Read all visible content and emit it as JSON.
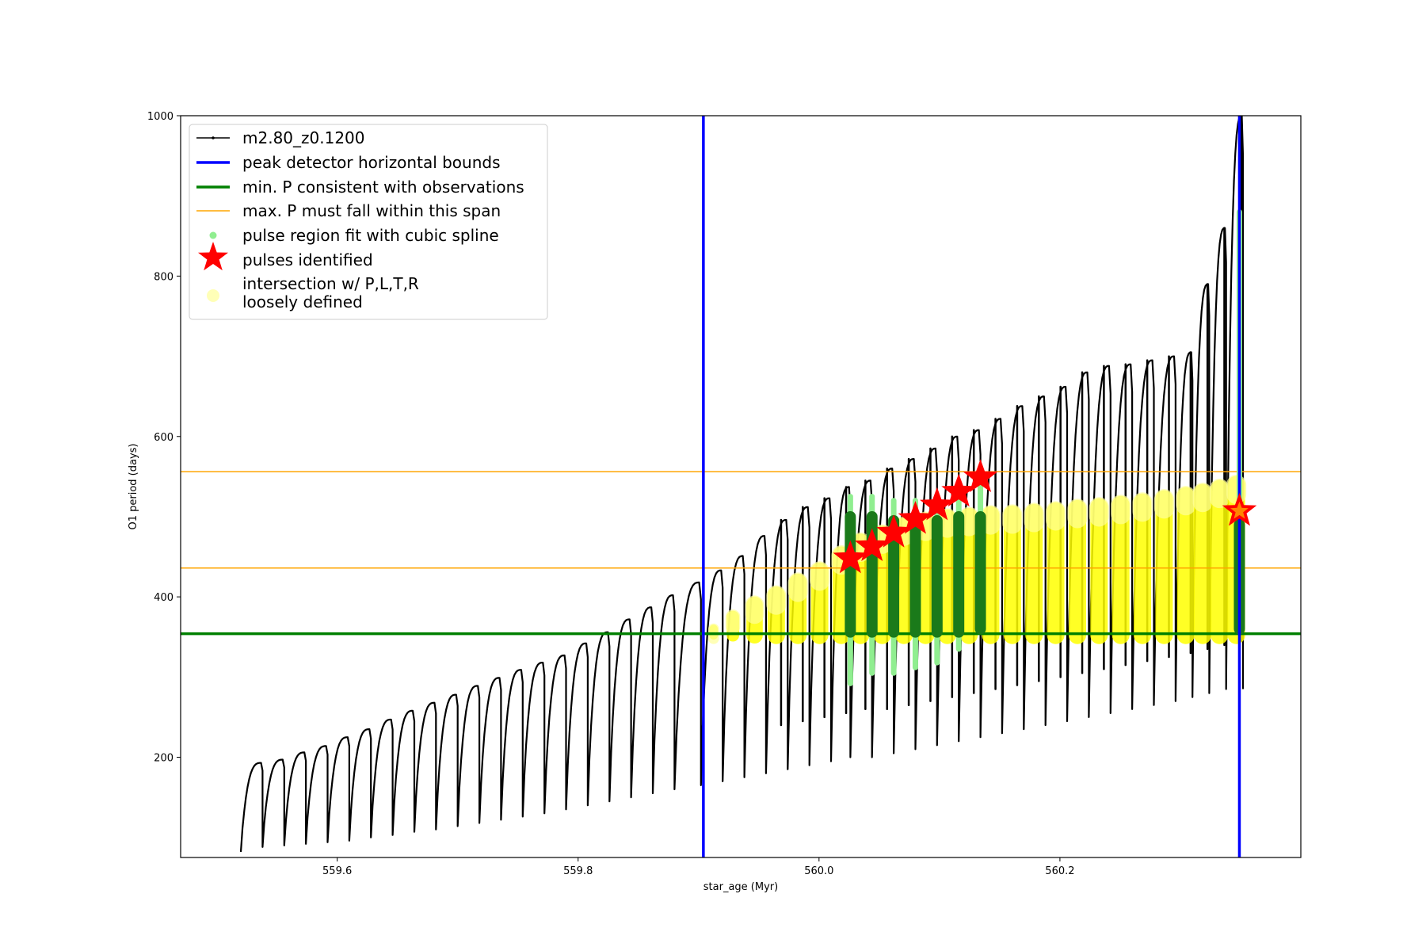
{
  "chart_data": {
    "type": "scatter",
    "title": "",
    "xlabel": "star_age (Myr)",
    "ylabel": "O1 period (days)",
    "xlim": [
      559.47,
      560.4
    ],
    "ylim": [
      75,
      1000
    ],
    "x_ticks": [
      559.6,
      559.8,
      560.0,
      560.2
    ],
    "x_tick_labels": [
      "559.6",
      "559.8",
      "560.0",
      "560.2"
    ],
    "y_ticks": [
      200,
      400,
      600,
      800,
      1000
    ],
    "y_tick_labels": [
      "200",
      "400",
      "600",
      "800",
      "1000"
    ],
    "grid": false,
    "legend_position": "upper-left",
    "legend": [
      {
        "label": "m2.80_z0.1200",
        "marker": "line-dot",
        "color": "#000000"
      },
      {
        "label": "peak detector horizontal bounds",
        "marker": "thick-line",
        "color": "#0000ff"
      },
      {
        "label": "min. P consistent with observations",
        "marker": "thick-line",
        "color": "#008000"
      },
      {
        "label": "max. P must fall within this span",
        "marker": "thin-line",
        "color": "#ffa500"
      },
      {
        "label": "pulse region fit with cubic spline",
        "marker": "dot",
        "color": "#90ee90"
      },
      {
        "label": "pulses identified",
        "marker": "star",
        "color": "#ff0000"
      },
      {
        "label": "intersection w/ P,L,T,R",
        "label2": "loosely defined",
        "marker": "big-dot",
        "color": "#ffff99"
      }
    ],
    "vertical_lines": [
      {
        "x": 559.904,
        "color": "#0000ff",
        "series": "peak detector horizontal bounds"
      },
      {
        "x": 560.349,
        "color": "#0000ff",
        "series": "peak detector horizontal bounds"
      }
    ],
    "horizontal_lines": [
      {
        "y": 354,
        "color": "#008000",
        "series": "min. P consistent with observations"
      },
      {
        "y": 436,
        "color": "#ffa500",
        "series": "max. P must fall within this span"
      },
      {
        "y": 556,
        "color": "#ffa500",
        "series": "max. P must fall within this span"
      }
    ],
    "track": {
      "name": "m2.80_z0.1200",
      "color": "#000000",
      "pulse_ages": [
        559.52,
        559.538,
        559.556,
        559.574,
        559.592,
        559.61,
        559.628,
        559.646,
        559.664,
        559.682,
        559.7,
        559.718,
        559.736,
        559.754,
        559.772,
        559.79,
        559.808,
        559.826,
        559.844,
        559.862,
        559.88,
        559.902,
        559.92,
        559.938,
        559.956,
        559.974,
        559.992,
        560.01,
        560.026,
        560.044,
        560.062,
        560.08,
        560.098,
        560.116,
        560.134,
        560.152,
        560.17,
        560.188,
        560.206,
        560.224,
        560.242,
        560.26,
        560.278,
        560.296,
        560.31,
        560.324,
        560.338
      ],
      "pulse_troughs": [
        82,
        88,
        90,
        92,
        94,
        96,
        100,
        103,
        107,
        110,
        114,
        118,
        122,
        126,
        130,
        135,
        140,
        145,
        150,
        155,
        160,
        165,
        170,
        175,
        180,
        185,
        190,
        195,
        200,
        200,
        205,
        210,
        215,
        220,
        225,
        230,
        235,
        240,
        245,
        250,
        255,
        260,
        265,
        270,
        275,
        280,
        285
      ],
      "pulse_peaks": [
        193,
        197,
        206,
        214,
        225,
        235,
        247,
        258,
        268,
        278,
        289,
        299,
        309,
        318,
        327,
        342,
        356,
        372,
        387,
        402,
        418,
        433,
        451,
        476,
        496,
        512,
        523,
        537,
        545,
        560,
        572,
        585,
        600,
        608,
        622,
        638,
        650,
        662,
        680,
        688,
        690,
        695,
        700,
        705,
        790,
        860,
        1000
      ]
    },
    "spline_series": {
      "name": "pulse region fit with cubic spline",
      "color": "#90ee90",
      "x": [
        560.026,
        560.044,
        560.062,
        560.08,
        560.098,
        560.116,
        560.134,
        560.349
      ],
      "y_min": [
        292,
        305,
        305,
        312,
        318,
        335,
        360,
        360
      ],
      "y_max": [
        525,
        525,
        520,
        520,
        520,
        527,
        540,
        880
      ]
    },
    "pulses_identified": {
      "name": "pulses identified",
      "color": "#ff0000",
      "x": [
        560.026,
        560.044,
        560.062,
        560.08,
        560.098,
        560.116,
        560.134,
        560.349
      ],
      "y": [
        448,
        463,
        480,
        497,
        514,
        531,
        549,
        507
      ]
    },
    "intersection_series": {
      "name": "intersection w/ P,L,T,R loosely defined",
      "color": "#ffff00",
      "y_bottom": 352,
      "x": [
        559.904,
        559.92,
        559.938,
        559.956,
        559.974,
        559.992,
        560.01,
        560.026,
        560.044,
        560.062,
        560.08,
        560.098,
        560.116,
        560.134,
        560.152,
        560.17,
        560.188,
        560.206,
        560.224,
        560.242,
        560.26,
        560.278,
        560.296,
        560.31,
        560.324,
        560.338
      ],
      "y_top": [
        360,
        375,
        390,
        402,
        418,
        432,
        452,
        468,
        478,
        488,
        494,
        498,
        500,
        502,
        503,
        505,
        507,
        510,
        512,
        515,
        518,
        522,
        526,
        530,
        535,
        540
      ]
    }
  }
}
